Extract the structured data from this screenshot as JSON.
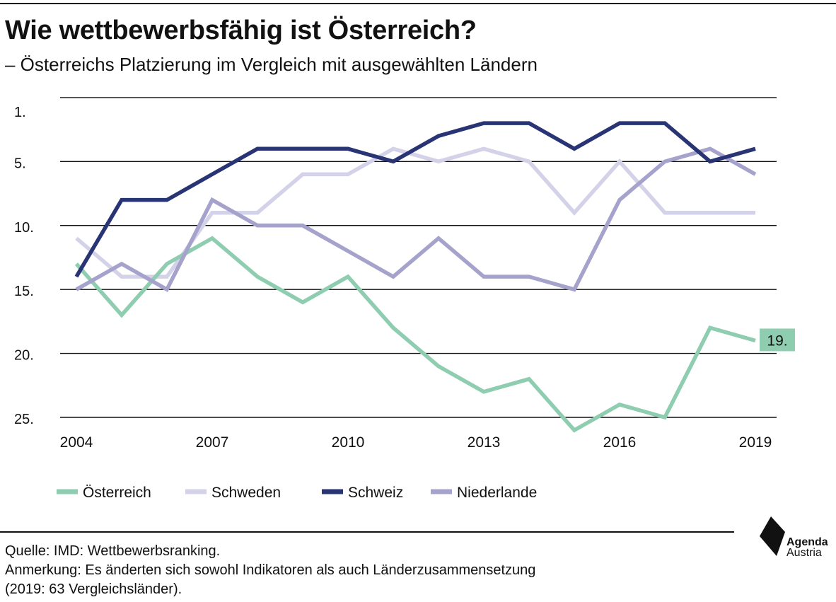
{
  "title": "Wie wettbewerbsfähig ist Österreich?",
  "subtitle": "– Österreichs Platzierung im Vergleich mit ausgewählten Ländern",
  "footer": {
    "source": "Quelle: IMD: Wettbewerbsranking.",
    "note1": "Anmerkung: Es änderten sich sowohl Indikatoren als auch Länderzusammensetzung",
    "note2": "(2019: 63 Vergleichsländer)."
  },
  "logo": {
    "line1": "Agenda",
    "line2": "Austria"
  },
  "chart_data": {
    "type": "line",
    "title": "Wie wettbewerbsfähig ist Österreich?",
    "subtitle": "– Österreichs Platzierung im Vergleich mit ausgewählten Ländern",
    "x": [
      2004,
      2005,
      2006,
      2007,
      2008,
      2009,
      2010,
      2011,
      2012,
      2013,
      2014,
      2015,
      2016,
      2017,
      2018,
      2019
    ],
    "x_ticks": [
      2004,
      2007,
      2010,
      2013,
      2016,
      2019
    ],
    "x_tick_labels": [
      "2004",
      "2007",
      "2010",
      "2013",
      "2016",
      "2019"
    ],
    "ylim": [
      1,
      25
    ],
    "y_inverted": true,
    "y_ticks": [
      1,
      5,
      10,
      15,
      20,
      25
    ],
    "y_tick_labels": [
      "1.",
      "5.",
      "10.",
      "15.",
      "20.",
      "25."
    ],
    "grid": true,
    "legend_position": "bottom-left",
    "series": [
      {
        "name": "Österreich",
        "color": "#8ecdb0",
        "values": [
          13,
          17,
          13,
          11,
          14,
          16,
          14,
          18,
          21,
          23,
          22,
          26,
          24,
          25,
          18,
          19
        ]
      },
      {
        "name": "Schweden",
        "color": "#d4d2e8",
        "values": [
          11,
          14,
          14,
          9,
          9,
          6,
          6,
          4,
          5,
          4,
          5,
          9,
          5,
          9,
          9,
          9
        ]
      },
      {
        "name": "Schweiz",
        "color": "#283474",
        "values": [
          14,
          8,
          8,
          6,
          4,
          4,
          4,
          5,
          3,
          2,
          2,
          4,
          2,
          2,
          5,
          4
        ]
      },
      {
        "name": "Niederlande",
        "color": "#a5a3cc",
        "values": [
          15,
          13,
          15,
          8,
          10,
          10,
          12,
          14,
          11,
          14,
          14,
          15,
          8,
          5,
          4,
          6
        ]
      }
    ],
    "annotations": [
      {
        "series": "Österreich",
        "x": 2019,
        "text": "19.",
        "background": "#8ecdb0"
      }
    ]
  }
}
